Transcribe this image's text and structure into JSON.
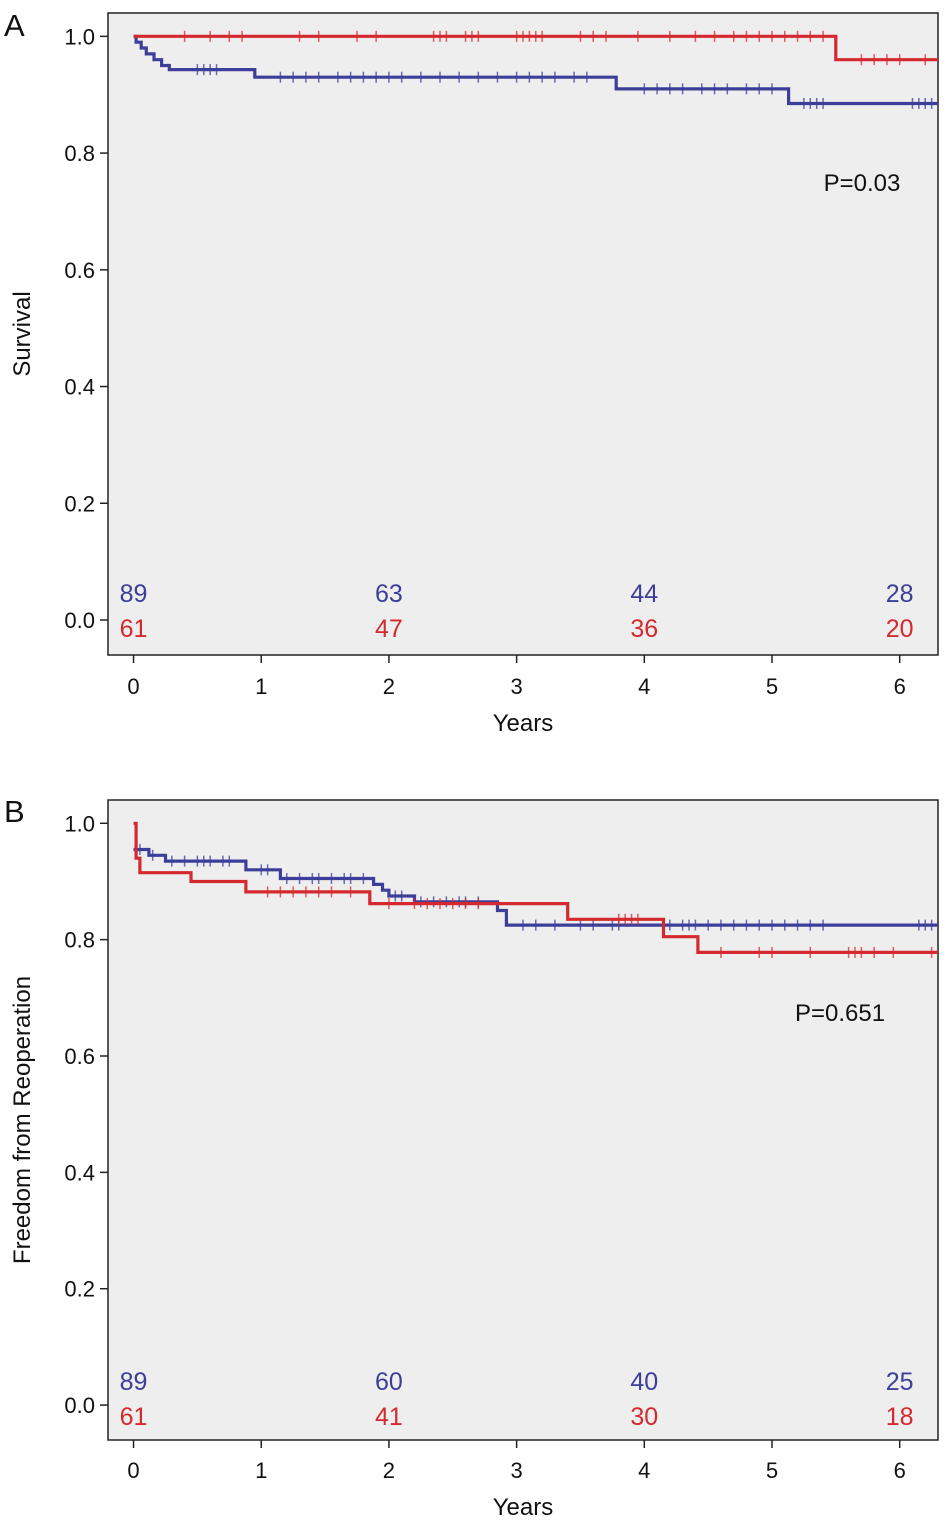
{
  "colors": {
    "background": "#ffffff",
    "plot_background": "#eeeeee",
    "axis": "#222222",
    "series_blue": "#3c3e99",
    "series_red": "#d42a2f"
  },
  "chart_data": [
    {
      "type": "line",
      "subtype": "kaplan-meier step",
      "panel_label": "A",
      "ylabel": "Survival",
      "xlabel": "Years",
      "annotation": "P=0.03",
      "xlim": [
        -0.2,
        6.3
      ],
      "ylim": [
        -0.06,
        1.04
      ],
      "x_ticks": [
        0,
        1,
        2,
        3,
        4,
        5,
        6
      ],
      "x_tick_labels": [
        "0",
        "1",
        "2",
        "3",
        "4",
        "5",
        "6"
      ],
      "y_ticks": [
        0.0,
        0.2,
        0.4,
        0.6,
        0.8,
        1.0
      ],
      "y_tick_labels": [
        "0.0",
        "0.2",
        "0.4",
        "0.6",
        "0.8",
        "1.0"
      ],
      "grid": false,
      "legend": "none",
      "series": [
        {
          "color": "#3c3e99",
          "steps": [
            [
              0,
              1.0
            ],
            [
              0.02,
              0.99
            ],
            [
              0.06,
              0.98
            ],
            [
              0.1,
              0.97
            ],
            [
              0.16,
              0.96
            ],
            [
              0.22,
              0.95
            ],
            [
              0.28,
              0.943
            ],
            [
              0.95,
              0.93
            ],
            [
              3.78,
              0.91
            ],
            [
              5.13,
              0.885
            ],
            [
              6.3,
              0.885
            ]
          ],
          "censor_x": [
            0.5,
            0.55,
            0.6,
            0.65,
            1.15,
            1.25,
            1.35,
            1.45,
            1.6,
            1.7,
            1.8,
            1.9,
            2.0,
            2.1,
            2.25,
            2.4,
            2.55,
            2.7,
            2.85,
            3.0,
            3.1,
            3.2,
            3.3,
            3.45,
            3.55,
            4.0,
            4.1,
            4.2,
            4.3,
            4.45,
            4.55,
            4.65,
            4.8,
            4.9,
            5.0,
            5.25,
            5.3,
            5.35,
            5.4,
            6.1,
            6.15,
            6.2,
            6.25
          ]
        },
        {
          "color": "#d42a2f",
          "steps": [
            [
              0,
              1.0
            ],
            [
              5.5,
              0.96
            ],
            [
              6.3,
              0.96
            ]
          ],
          "censor_x": [
            0.4,
            0.6,
            0.75,
            0.85,
            1.3,
            1.45,
            1.75,
            1.9,
            2.35,
            2.4,
            2.45,
            2.6,
            2.65,
            2.7,
            3.0,
            3.05,
            3.1,
            3.15,
            3.2,
            3.5,
            3.6,
            3.7,
            3.95,
            4.2,
            4.4,
            4.55,
            4.7,
            4.8,
            4.9,
            5.0,
            5.1,
            5.2,
            5.3,
            5.4,
            5.7,
            5.8,
            5.9,
            6.0,
            6.2
          ]
        }
      ],
      "at_risk": {
        "x": [
          0,
          2,
          4,
          6
        ],
        "blue": [
          "89",
          "63",
          "44",
          "28"
        ],
        "red": [
          "61",
          "47",
          "36",
          "20"
        ]
      }
    },
    {
      "type": "line",
      "subtype": "kaplan-meier step",
      "panel_label": "B",
      "ylabel": "Freedom from Reoperation",
      "xlabel": "Years",
      "annotation": "P=0.651",
      "xlim": [
        -0.2,
        6.3
      ],
      "ylim": [
        -0.06,
        1.04
      ],
      "x_ticks": [
        0,
        1,
        2,
        3,
        4,
        5,
        6
      ],
      "x_tick_labels": [
        "0",
        "1",
        "2",
        "3",
        "4",
        "5",
        "6"
      ],
      "y_ticks": [
        0.0,
        0.2,
        0.4,
        0.6,
        0.8,
        1.0
      ],
      "y_tick_labels": [
        "0.0",
        "0.2",
        "0.4",
        "0.6",
        "0.8",
        "1.0"
      ],
      "grid": false,
      "legend": "none",
      "series": [
        {
          "color": "#3c3e99",
          "steps": [
            [
              0,
              0.955
            ],
            [
              0.12,
              0.945
            ],
            [
              0.25,
              0.935
            ],
            [
              0.88,
              0.92
            ],
            [
              1.15,
              0.905
            ],
            [
              1.88,
              0.895
            ],
            [
              1.95,
              0.885
            ],
            [
              2.0,
              0.875
            ],
            [
              2.2,
              0.865
            ],
            [
              2.85,
              0.85
            ],
            [
              2.92,
              0.825
            ],
            [
              6.3,
              0.825
            ]
          ],
          "censor_x": [
            0.05,
            0.15,
            0.3,
            0.4,
            0.5,
            0.55,
            0.6,
            0.7,
            0.75,
            1.0,
            1.05,
            1.2,
            1.3,
            1.4,
            1.45,
            1.55,
            1.65,
            1.7,
            1.8,
            2.05,
            2.1,
            2.25,
            2.35,
            2.45,
            2.55,
            2.6,
            2.7,
            3.05,
            3.15,
            3.3,
            3.5,
            3.6,
            3.75,
            3.8,
            4.2,
            4.3,
            4.35,
            4.4,
            4.5,
            4.6,
            4.7,
            4.8,
            4.9,
            5.0,
            5.1,
            5.2,
            5.3,
            5.4,
            6.15,
            6.2,
            6.25
          ]
        },
        {
          "color": "#d42a2f",
          "steps": [
            [
              0,
              1.0
            ],
            [
              0.02,
              0.94
            ],
            [
              0.05,
              0.915
            ],
            [
              0.45,
              0.9
            ],
            [
              0.88,
              0.882
            ],
            [
              1.85,
              0.862
            ],
            [
              3.4,
              0.835
            ],
            [
              4.15,
              0.805
            ],
            [
              4.42,
              0.778
            ],
            [
              6.3,
              0.778
            ]
          ],
          "censor_x": [
            1.05,
            1.15,
            1.25,
            1.35,
            1.45,
            1.55,
            1.7,
            2.0,
            2.2,
            2.3,
            2.4,
            2.5,
            2.6,
            2.7,
            3.8,
            3.85,
            3.9,
            3.95,
            4.6,
            4.9,
            5.0,
            5.3,
            5.6,
            5.65,
            5.7,
            5.8,
            5.95,
            6.25
          ]
        }
      ],
      "at_risk": {
        "x": [
          0,
          2,
          4,
          6
        ],
        "blue": [
          "89",
          "60",
          "40",
          "25"
        ],
        "red": [
          "61",
          "41",
          "30",
          "18"
        ]
      }
    }
  ]
}
